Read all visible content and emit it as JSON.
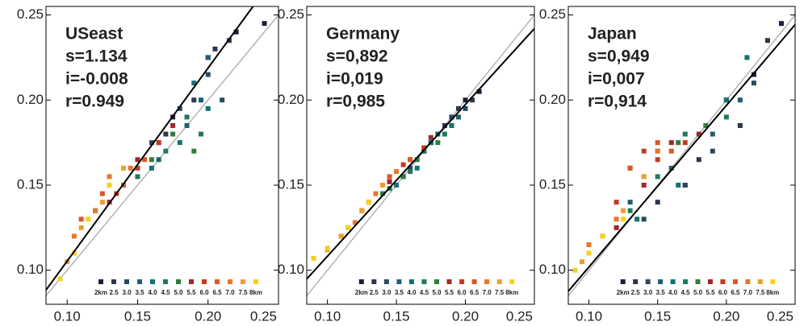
{
  "chart_data": [
    {
      "type": "scatter",
      "annotations": [
        "USeast",
        "s=1.134",
        "i=-0.008",
        "r=0.949"
      ],
      "xlim": [
        0.085,
        0.25
      ],
      "ylim": [
        0.08,
        0.255
      ],
      "xticks": [
        {
          "value": 0.1,
          "label": "0.10"
        },
        {
          "value": 0.15,
          "label": "0.15"
        },
        {
          "value": 0.2,
          "label": "0.20"
        },
        {
          "value": 0.25,
          "label": "0.25"
        }
      ],
      "yticks": [
        {
          "value": 0.1,
          "label": "0.10"
        },
        {
          "value": 0.15,
          "label": "0.15"
        },
        {
          "value": 0.2,
          "label": "0.20"
        },
        {
          "value": 0.25,
          "label": "0.25"
        }
      ],
      "fit_line": {
        "color": "#000000",
        "x": [
          0.08,
          0.25
        ],
        "y": [
          0.0827,
          0.2755
        ]
      },
      "identity_line": {
        "color": "#aaaaaa",
        "x": [
          0.08,
          0.25
        ],
        "y": [
          0.08,
          0.25
        ]
      },
      "series": [
        {
          "name": "2km",
          "color": "#1e1e3c",
          "x": [
            0.175,
            0.2,
            0.22,
            0.24
          ],
          "values": [
            0.19,
            0.225,
            0.24,
            0.245
          ]
        },
        {
          "name": "2.5",
          "color": "#2e3550",
          "x": [
            0.17,
            0.19,
            0.205,
            0.215
          ],
          "values": [
            0.18,
            0.2,
            0.23,
            0.235
          ]
        },
        {
          "name": "3.0",
          "color": "#2a4a5e",
          "x": [
            0.16,
            0.18,
            0.2,
            0.21
          ],
          "values": [
            0.175,
            0.195,
            0.215,
            0.2
          ]
        },
        {
          "name": "3.5",
          "color": "#1d5f6f",
          "x": [
            0.165,
            0.185,
            0.195,
            0.2
          ],
          "values": [
            0.165,
            0.185,
            0.2,
            0.225
          ]
        },
        {
          "name": "4.0",
          "color": "#127275",
          "x": [
            0.16,
            0.18,
            0.19,
            0.2
          ],
          "values": [
            0.16,
            0.175,
            0.21,
            0.195
          ]
        },
        {
          "name": "4.5",
          "color": "#1f7a5a",
          "x": [
            0.15,
            0.17,
            0.185,
            0.195
          ],
          "values": [
            0.155,
            0.17,
            0.19,
            0.18
          ]
        },
        {
          "name": "5.0",
          "color": "#2f7d3c",
          "x": [
            0.14,
            0.16,
            0.175,
            0.19
          ],
          "values": [
            0.15,
            0.165,
            0.18,
            0.17
          ]
        },
        {
          "name": "5.5",
          "color": "#a02828",
          "x": [
            0.13,
            0.15,
            0.165,
            0.175
          ],
          "values": [
            0.14,
            0.165,
            0.175,
            0.185
          ]
        },
        {
          "name": "6.0",
          "color": "#c43a20",
          "x": [
            0.12,
            0.135,
            0.15,
            0.165
          ],
          "values": [
            0.135,
            0.145,
            0.16,
            0.175
          ]
        },
        {
          "name": "6.5",
          "color": "#d8582a",
          "x": [
            0.11,
            0.125,
            0.14,
            0.155
          ],
          "values": [
            0.13,
            0.145,
            0.15,
            0.165
          ]
        },
        {
          "name": "7.0",
          "color": "#e07a2a",
          "x": [
            0.105,
            0.12,
            0.13,
            0.145
          ],
          "values": [
            0.12,
            0.135,
            0.155,
            0.16
          ]
        },
        {
          "name": "7.5",
          "color": "#eaa030",
          "x": [
            0.1,
            0.11,
            0.125,
            0.14
          ],
          "values": [
            0.105,
            0.125,
            0.14,
            0.16
          ]
        },
        {
          "name": "8km",
          "color": "#f5d020",
          "x": [
            0.095,
            0.105,
            0.115,
            0.13
          ],
          "values": [
            0.095,
            0.11,
            0.13,
            0.15
          ]
        }
      ]
    },
    {
      "type": "scatter",
      "annotations": [
        "Germany",
        "s=0,892",
        "i=0,019",
        "r=0,985"
      ],
      "xlim": [
        0.085,
        0.25
      ],
      "ylim": [
        0.08,
        0.255
      ],
      "xticks": [
        {
          "value": 0.1,
          "label": "0.10"
        },
        {
          "value": 0.15,
          "label": "0.15"
        },
        {
          "value": 0.2,
          "label": "0.20"
        },
        {
          "value": 0.25,
          "label": "0.25"
        }
      ],
      "yticks": [
        {
          "value": 0.1,
          "label": "0.10"
        },
        {
          "value": 0.15,
          "label": "0.15"
        },
        {
          "value": 0.2,
          "label": "0.20"
        },
        {
          "value": 0.25,
          "label": "0.25"
        }
      ],
      "fit_line": {
        "color": "#000000",
        "x": [
          0.08,
          0.25
        ],
        "y": [
          0.0904,
          0.242
        ]
      },
      "identity_line": {
        "color": "#aaaaaa",
        "x": [
          0.08,
          0.25
        ],
        "y": [
          0.08,
          0.25
        ]
      },
      "series": [
        {
          "name": "2km",
          "color": "#1e1e3c",
          "x": [
            0.175,
            0.19,
            0.2,
            0.21
          ],
          "values": [
            0.175,
            0.19,
            0.2,
            0.205
          ]
        },
        {
          "name": "2.5",
          "color": "#2e3550",
          "x": [
            0.17,
            0.185,
            0.195,
            0.205
          ],
          "values": [
            0.17,
            0.185,
            0.195,
            0.2
          ]
        },
        {
          "name": "3.0",
          "color": "#2a4a5e",
          "x": [
            0.16,
            0.175,
            0.19,
            0.2
          ],
          "values": [
            0.16,
            0.175,
            0.19,
            0.195
          ]
        },
        {
          "name": "3.5",
          "color": "#1d5f6f",
          "x": [
            0.155,
            0.17,
            0.18,
            0.195
          ],
          "values": [
            0.155,
            0.17,
            0.18,
            0.19
          ]
        },
        {
          "name": "4.0",
          "color": "#127275",
          "x": [
            0.15,
            0.165,
            0.175,
            0.19
          ],
          "values": [
            0.15,
            0.16,
            0.175,
            0.185
          ]
        },
        {
          "name": "4.5",
          "color": "#1f7a5a",
          "x": [
            0.145,
            0.16,
            0.17,
            0.185
          ],
          "values": [
            0.148,
            0.158,
            0.17,
            0.18
          ]
        },
        {
          "name": "5.0",
          "color": "#2f7d3c",
          "x": [
            0.14,
            0.155,
            0.165,
            0.18
          ],
          "values": [
            0.145,
            0.155,
            0.165,
            0.175
          ]
        },
        {
          "name": "5.5",
          "color": "#a02828",
          "x": [
            0.13,
            0.145,
            0.16,
            0.175
          ],
          "values": [
            0.14,
            0.152,
            0.165,
            0.178
          ]
        },
        {
          "name": "6.0",
          "color": "#c43a20",
          "x": [
            0.125,
            0.14,
            0.155,
            0.17
          ],
          "values": [
            0.135,
            0.15,
            0.162,
            0.172
          ]
        },
        {
          "name": "6.5",
          "color": "#d8582a",
          "x": [
            0.115,
            0.13,
            0.145,
            0.16
          ],
          "values": [
            0.125,
            0.14,
            0.155,
            0.165
          ]
        },
        {
          "name": "7.0",
          "color": "#e07a2a",
          "x": [
            0.11,
            0.12,
            0.135,
            0.15
          ],
          "values": [
            0.12,
            0.128,
            0.145,
            0.158
          ]
        },
        {
          "name": "7.5",
          "color": "#eaa030",
          "x": [
            0.1,
            0.11,
            0.125,
            0.14
          ],
          "values": [
            0.112,
            0.12,
            0.135,
            0.15
          ]
        },
        {
          "name": "8km",
          "color": "#f5d020",
          "x": [
            0.09,
            0.1,
            0.115,
            0.13
          ],
          "values": [
            0.107,
            0.113,
            0.125,
            0.14
          ]
        }
      ]
    },
    {
      "type": "scatter",
      "annotations": [
        "Japan",
        "s=0,949",
        "i=0,007",
        "r=0,914"
      ],
      "xlim": [
        0.085,
        0.25
      ],
      "ylim": [
        0.08,
        0.255
      ],
      "xticks": [
        {
          "value": 0.1,
          "label": "0.10"
        },
        {
          "value": 0.15,
          "label": "0.15"
        },
        {
          "value": 0.2,
          "label": "0.20"
        },
        {
          "value": 0.25,
          "label": "0.25"
        }
      ],
      "yticks": [
        {
          "value": 0.1,
          "label": "0.10"
        },
        {
          "value": 0.15,
          "label": "0.15"
        },
        {
          "value": 0.2,
          "label": "0.20"
        },
        {
          "value": 0.25,
          "label": "0.25"
        }
      ],
      "fit_line": {
        "color": "#000000",
        "x": [
          0.08,
          0.25
        ],
        "y": [
          0.0829,
          0.2443
        ]
      },
      "identity_line": {
        "color": "#aaaaaa",
        "x": [
          0.08,
          0.25
        ],
        "y": [
          0.08,
          0.25
        ]
      },
      "series": [
        {
          "name": "2km",
          "color": "#1e1e3c",
          "x": [
            0.17,
            0.2,
            0.22,
            0.24
          ],
          "values": [
            0.15,
            0.2,
            0.215,
            0.245
          ]
        },
        {
          "name": "2.5",
          "color": "#2e3550",
          "x": [
            0.15,
            0.18,
            0.21,
            0.23
          ],
          "values": [
            0.14,
            0.165,
            0.185,
            0.235
          ]
        },
        {
          "name": "3.0",
          "color": "#2a4a5e",
          "x": [
            0.14,
            0.17,
            0.19,
            0.22
          ],
          "values": [
            0.13,
            0.15,
            0.17,
            0.21
          ]
        },
        {
          "name": "3.5",
          "color": "#1d5f6f",
          "x": [
            0.13,
            0.16,
            0.19,
            0.21
          ],
          "values": [
            0.14,
            0.16,
            0.18,
            0.2
          ]
        },
        {
          "name": "4.0",
          "color": "#127275",
          "x": [
            0.135,
            0.165,
            0.2,
            0.215
          ],
          "values": [
            0.13,
            0.15,
            0.2,
            0.225
          ]
        },
        {
          "name": "4.5",
          "color": "#1f7a5a",
          "x": [
            0.13,
            0.15,
            0.17,
            0.2
          ],
          "values": [
            0.135,
            0.155,
            0.18,
            0.19
          ]
        },
        {
          "name": "5.0",
          "color": "#2f7d3c",
          "x": [
            0.13,
            0.15,
            0.165,
            0.185
          ],
          "values": [
            0.16,
            0.17,
            0.175,
            0.185
          ]
        },
        {
          "name": "5.5",
          "color": "#a02828",
          "x": [
            0.12,
            0.14,
            0.16,
            0.18
          ],
          "values": [
            0.125,
            0.15,
            0.175,
            0.18
          ]
        },
        {
          "name": "6.0",
          "color": "#c43a20",
          "x": [
            0.12,
            0.14,
            0.15,
            0.17
          ],
          "values": [
            0.14,
            0.17,
            0.165,
            0.175
          ]
        },
        {
          "name": "6.5",
          "color": "#d8582a",
          "x": [
            0.11,
            0.13,
            0.15,
            0.16
          ],
          "values": [
            0.12,
            0.16,
            0.175,
            0.17
          ]
        },
        {
          "name": "7.0",
          "color": "#e07a2a",
          "x": [
            0.1,
            0.12,
            0.14,
            0.15
          ],
          "values": [
            0.115,
            0.13,
            0.155,
            0.17
          ]
        },
        {
          "name": "7.5",
          "color": "#eaa030",
          "x": [
            0.095,
            0.11,
            0.125,
            0.14
          ],
          "values": [
            0.105,
            0.12,
            0.135,
            0.155
          ]
        },
        {
          "name": "8km",
          "color": "#f5d020",
          "x": [
            0.09,
            0.1,
            0.11,
            0.125
          ],
          "values": [
            0.1,
            0.11,
            0.12,
            0.13
          ]
        }
      ]
    }
  ]
}
